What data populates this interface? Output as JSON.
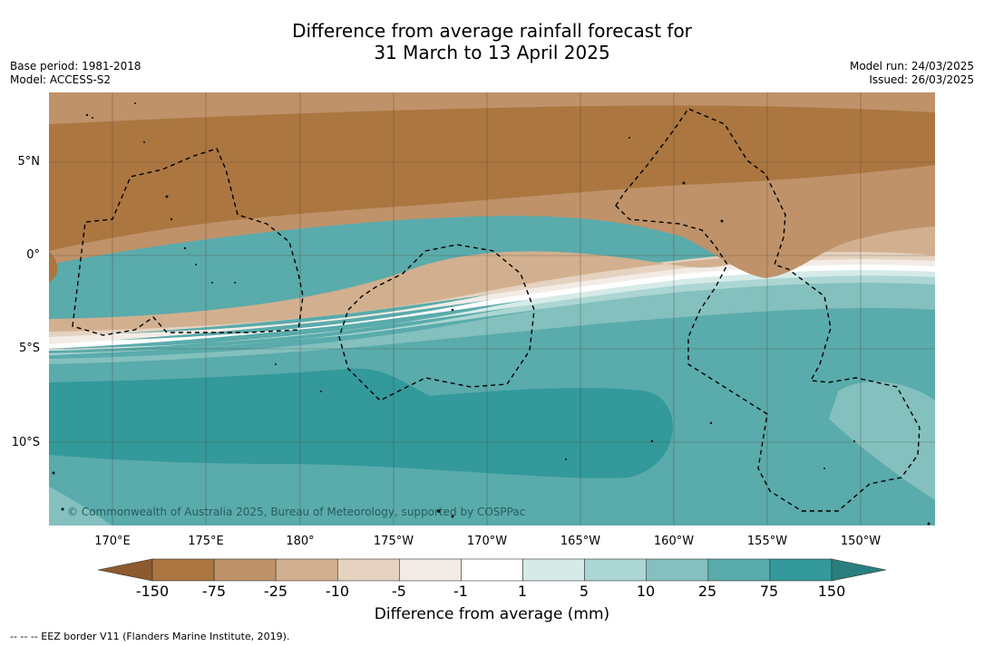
{
  "title": {
    "line1": "Difference from average rainfall forecast for",
    "line2": "31 March to 13 April 2025"
  },
  "meta": {
    "base_period": "Base period: 1981-2018",
    "model": "Model: ACCESS-S2",
    "model_run": "Model run: 24/03/2025",
    "issued": "Issued: 26/03/2025"
  },
  "map": {
    "lat_labels": [
      "5°N",
      "0°",
      "5°S",
      "10°S"
    ],
    "lon_labels": [
      "170°E",
      "175°E",
      "180°",
      "175°W",
      "170°W",
      "165°W",
      "160°W",
      "155°W",
      "150°W"
    ],
    "copyright": "© Commonwealth of Australia 2025, Bureau of Meteorology, supported by COSPPac"
  },
  "legend": {
    "ticks": [
      "-150",
      "-75",
      "-25",
      "-10",
      "-5",
      "-1",
      "1",
      "5",
      "10",
      "25",
      "75",
      "150"
    ],
    "colors": [
      "#8c5a2e",
      "#ab7640",
      "#bf926a",
      "#d2b08f",
      "#e5d2c0",
      "#f3ece6",
      "#ffffff",
      "#d6ebe8",
      "#acd6d3",
      "#83c0be",
      "#5aabab",
      "#33999a",
      "#2a7f7e"
    ],
    "label": "Difference from average (mm)"
  },
  "footnote": "--  --  -- EEZ border V11 (Flanders Marine Institute, 2019)."
}
